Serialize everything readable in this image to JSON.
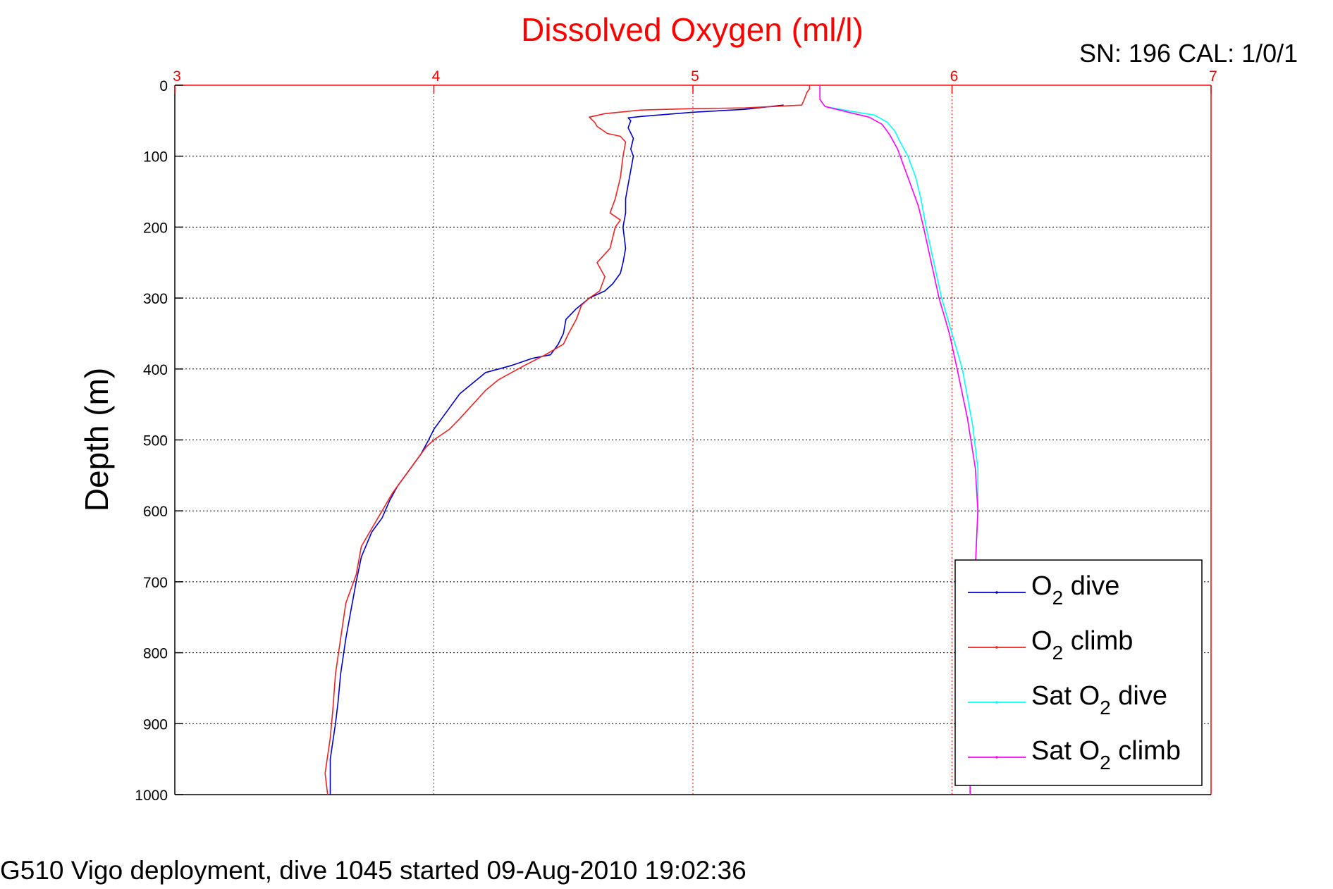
{
  "chart_data": {
    "type": "line",
    "title": "Dissolved Oxygen (ml/l)",
    "title_color": "#ff0000",
    "top_right_text": "SN: 196  CAL: 1/0/1",
    "footer_text": "G510 Vigo deployment, dive 1045 started 09-Aug-2010 19:02:36",
    "xlabel": "",
    "ylabel": "Depth (m)",
    "xlim": [
      3,
      7
    ],
    "ylim": [
      0,
      1000
    ],
    "y_reversed": true,
    "x_axis_position": "top",
    "x_axis_color": "#ff0000",
    "x_ticks": [
      3,
      4,
      5,
      6,
      7
    ],
    "y_ticks": [
      0,
      100,
      200,
      300,
      400,
      500,
      600,
      700,
      800,
      900,
      1000
    ],
    "grid": true,
    "legend_placement": "bottom-right",
    "series": [
      {
        "name": "O2 dive",
        "legend_main": "O",
        "legend_sub": "2",
        "legend_rest": " dive",
        "color": "#0000cc",
        "points": [
          [
            5.35,
            28
          ],
          [
            5.2,
            34
          ],
          [
            5.0,
            38
          ],
          [
            4.9,
            41
          ],
          [
            4.8,
            44
          ],
          [
            4.75,
            46
          ],
          [
            4.76,
            50
          ],
          [
            4.75,
            60
          ],
          [
            4.77,
            75
          ],
          [
            4.76,
            90
          ],
          [
            4.77,
            100
          ],
          [
            4.76,
            120
          ],
          [
            4.75,
            140
          ],
          [
            4.74,
            160
          ],
          [
            4.74,
            180
          ],
          [
            4.73,
            200
          ],
          [
            4.74,
            230
          ],
          [
            4.73,
            250
          ],
          [
            4.72,
            265
          ],
          [
            4.69,
            280
          ],
          [
            4.66,
            290
          ],
          [
            4.6,
            300
          ],
          [
            4.55,
            315
          ],
          [
            4.51,
            330
          ],
          [
            4.5,
            350
          ],
          [
            4.48,
            365
          ],
          [
            4.45,
            380
          ],
          [
            4.38,
            385
          ],
          [
            4.3,
            395
          ],
          [
            4.2,
            405
          ],
          [
            4.15,
            420
          ],
          [
            4.1,
            435
          ],
          [
            4.06,
            455
          ],
          [
            4.03,
            470
          ],
          [
            4.0,
            485
          ],
          [
            3.98,
            500
          ],
          [
            3.95,
            520
          ],
          [
            3.9,
            545
          ],
          [
            3.86,
            565
          ],
          [
            3.83,
            585
          ],
          [
            3.8,
            610
          ],
          [
            3.76,
            630
          ],
          [
            3.72,
            665
          ],
          [
            3.7,
            700
          ],
          [
            3.68,
            740
          ],
          [
            3.66,
            780
          ],
          [
            3.64,
            830
          ],
          [
            3.63,
            870
          ],
          [
            3.62,
            900
          ],
          [
            3.6,
            950
          ],
          [
            3.6,
            1000
          ]
        ]
      },
      {
        "name": "O2 climb",
        "legend_main": "O",
        "legend_sub": "2",
        "legend_rest": " climb",
        "color": "#ee2222",
        "points": [
          [
            5.45,
            0
          ],
          [
            5.45,
            5
          ],
          [
            5.44,
            10
          ],
          [
            5.43,
            20
          ],
          [
            5.42,
            28
          ],
          [
            5.2,
            32
          ],
          [
            5.0,
            33
          ],
          [
            4.8,
            35
          ],
          [
            4.66,
            40
          ],
          [
            4.6,
            45
          ],
          [
            4.62,
            52
          ],
          [
            4.63,
            58
          ],
          [
            4.67,
            68
          ],
          [
            4.72,
            72
          ],
          [
            4.74,
            80
          ],
          [
            4.73,
            100
          ],
          [
            4.72,
            130
          ],
          [
            4.7,
            160
          ],
          [
            4.68,
            180
          ],
          [
            4.72,
            190
          ],
          [
            4.7,
            200
          ],
          [
            4.68,
            230
          ],
          [
            4.63,
            250
          ],
          [
            4.66,
            270
          ],
          [
            4.64,
            290
          ],
          [
            4.6,
            300
          ],
          [
            4.57,
            310
          ],
          [
            4.55,
            330
          ],
          [
            4.52,
            350
          ],
          [
            4.5,
            365
          ],
          [
            4.43,
            380
          ],
          [
            4.35,
            395
          ],
          [
            4.25,
            415
          ],
          [
            4.2,
            430
          ],
          [
            4.15,
            450
          ],
          [
            4.1,
            470
          ],
          [
            4.06,
            485
          ],
          [
            4.0,
            500
          ],
          [
            3.97,
            510
          ],
          [
            3.93,
            530
          ],
          [
            3.88,
            555
          ],
          [
            3.84,
            575
          ],
          [
            3.8,
            600
          ],
          [
            3.76,
            625
          ],
          [
            3.72,
            650
          ],
          [
            3.7,
            690
          ],
          [
            3.66,
            730
          ],
          [
            3.64,
            780
          ],
          [
            3.62,
            830
          ],
          [
            3.61,
            880
          ],
          [
            3.6,
            920
          ],
          [
            3.58,
            970
          ],
          [
            3.59,
            1000
          ]
        ]
      },
      {
        "name": "Sat O2 dive",
        "legend_main": "Sat O",
        "legend_sub": "2",
        "legend_rest": " dive",
        "color": "#00ffff",
        "points": [
          [
            5.51,
            30
          ],
          [
            5.6,
            36
          ],
          [
            5.7,
            42
          ],
          [
            5.75,
            52
          ],
          [
            5.78,
            65
          ],
          [
            5.8,
            80
          ],
          [
            5.83,
            100
          ],
          [
            5.86,
            130
          ],
          [
            5.88,
            160
          ],
          [
            5.9,
            200
          ],
          [
            5.93,
            250
          ],
          [
            5.96,
            300
          ],
          [
            6.0,
            350
          ],
          [
            6.04,
            400
          ],
          [
            6.08,
            480
          ],
          [
            6.1,
            540
          ],
          [
            6.1,
            600
          ],
          [
            6.09,
            680
          ],
          [
            6.08,
            780
          ],
          [
            6.07,
            880
          ],
          [
            6.07,
            940
          ],
          [
            6.07,
            1000
          ]
        ]
      },
      {
        "name": "Sat O2 climb",
        "legend_main": "Sat O",
        "legend_sub": "2",
        "legend_rest": " climb",
        "color": "#ff00ff",
        "points": [
          [
            5.49,
            0
          ],
          [
            5.49,
            10
          ],
          [
            5.49,
            20
          ],
          [
            5.51,
            30
          ],
          [
            5.6,
            38
          ],
          [
            5.68,
            45
          ],
          [
            5.73,
            55
          ],
          [
            5.76,
            70
          ],
          [
            5.79,
            90
          ],
          [
            5.81,
            110
          ],
          [
            5.84,
            140
          ],
          [
            5.87,
            170
          ],
          [
            5.89,
            200
          ],
          [
            5.92,
            250
          ],
          [
            5.95,
            300
          ],
          [
            5.99,
            350
          ],
          [
            6.02,
            400
          ],
          [
            6.06,
            470
          ],
          [
            6.09,
            540
          ],
          [
            6.1,
            600
          ],
          [
            6.09,
            680
          ],
          [
            6.08,
            780
          ],
          [
            6.07,
            880
          ],
          [
            6.07,
            940
          ],
          [
            6.07,
            1000
          ]
        ]
      }
    ]
  }
}
